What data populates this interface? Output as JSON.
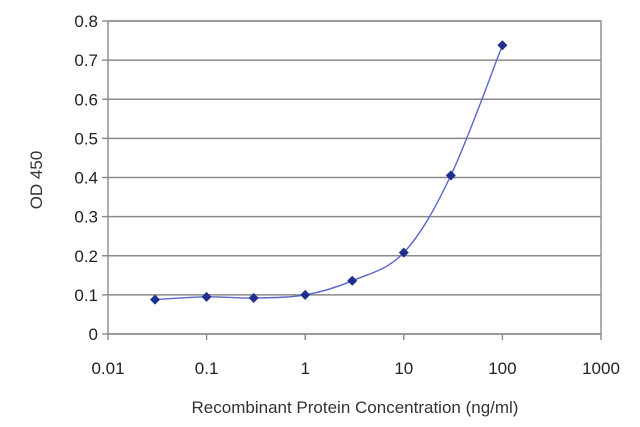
{
  "chart_data": {
    "type": "line",
    "title": "",
    "xlabel": "Recombinant Protein Concentration (ng/ml)",
    "ylabel": "OD 450",
    "x_scale": "log",
    "xlim": [
      0.01,
      1000
    ],
    "ylim": [
      0,
      0.8
    ],
    "x_ticks": [
      "0.01",
      "0.1",
      "1",
      "10",
      "100",
      "1000"
    ],
    "y_ticks": [
      "0",
      "0.1",
      "0.2",
      "0.3",
      "0.4",
      "0.5",
      "0.6",
      "0.7",
      "0.8"
    ],
    "grid": true,
    "legend": false,
    "series": [
      {
        "x": [
          0.03,
          0.1,
          0.3,
          1,
          3,
          10,
          30,
          100
        ],
        "y": [
          0.088,
          0.095,
          0.092,
          0.1,
          0.136,
          0.208,
          0.405,
          0.738
        ],
        "color": "#1f2f8f",
        "line_color": "#5a66c8",
        "marker": "diamond"
      }
    ]
  }
}
